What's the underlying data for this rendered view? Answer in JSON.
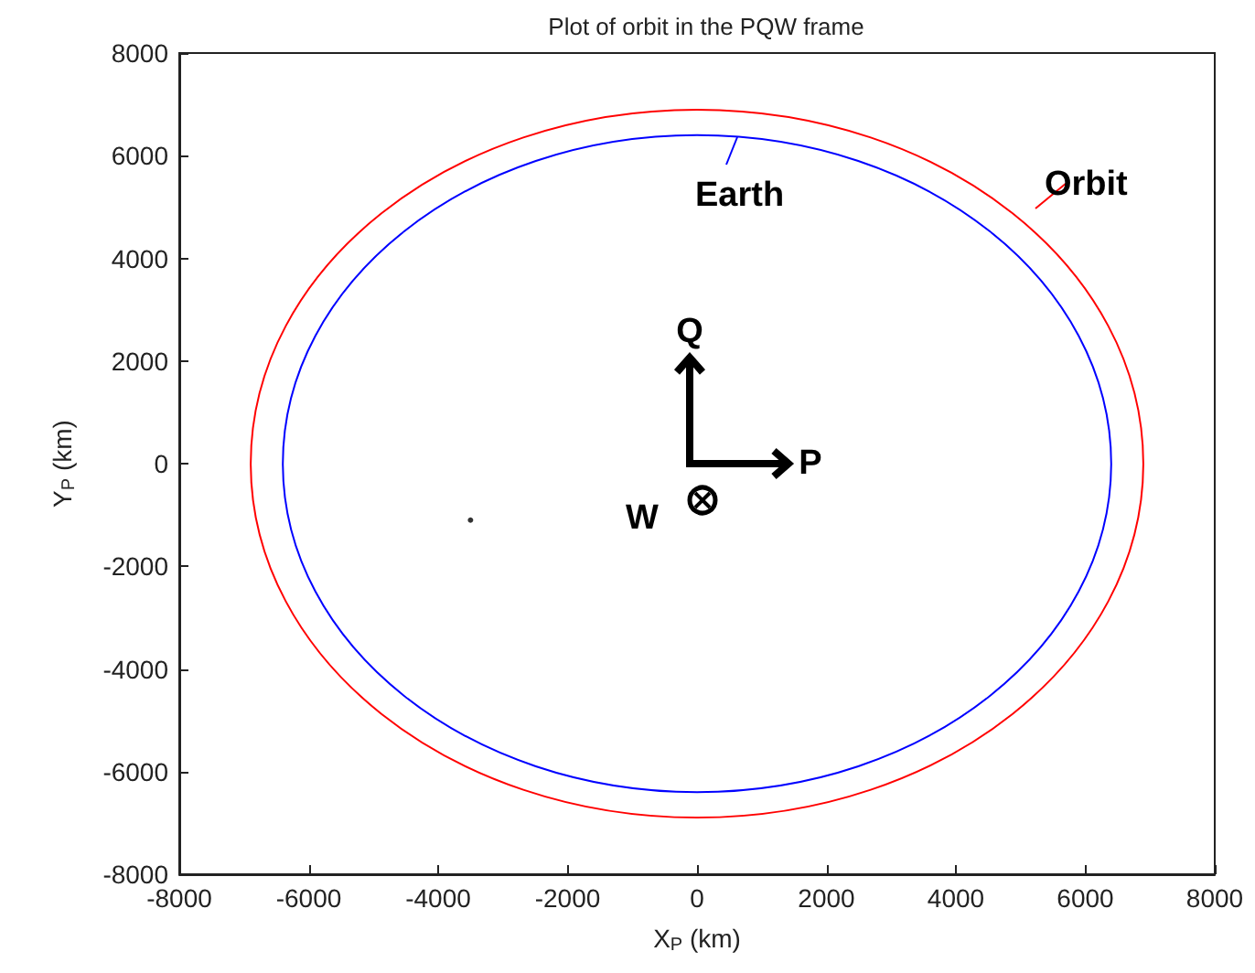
{
  "chart_data": {
    "type": "scatter",
    "title": "Plot of orbit in the PQW frame",
    "xlabel": "X$_{P}$ (km)",
    "ylabel": "Y$_{P}$ (km)",
    "xlim": [
      -8000,
      8000
    ],
    "xticks": [
      -8000,
      -6000,
      -4000,
      -2000,
      0,
      2000,
      4000,
      6000,
      8000
    ],
    "ylim": [
      -8000,
      8000
    ],
    "yticks": [
      -8000,
      -6000,
      -4000,
      -2000,
      0,
      2000,
      4000,
      6000,
      8000
    ],
    "grid": false,
    "marker": "circle",
    "series": [
      {
        "color": "#000000",
        "x": [
          -3500
        ],
        "values": [
          -1100
        ]
      }
    ],
    "annotations": [
      "Earth",
      "Orbit",
      "Q",
      "P",
      "W"
    ]
  }
}
